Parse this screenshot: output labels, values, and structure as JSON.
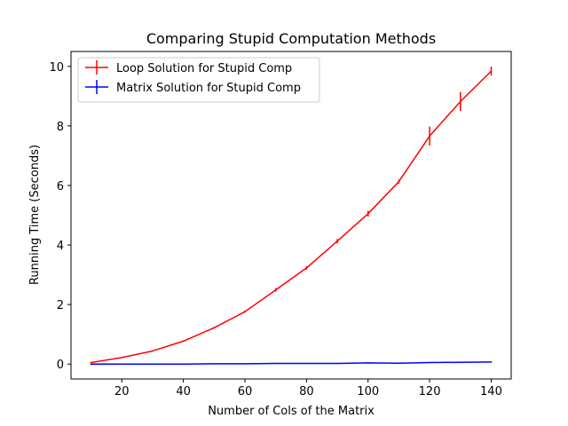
{
  "chart_data": {
    "type": "line",
    "title": "Comparing Stupid Computation Methods",
    "xlabel": "Number of Cols of the Matrix",
    "ylabel": "Running Time (Seconds)",
    "xlim": [
      3.5,
      146.5
    ],
    "ylim": [
      -0.5,
      10.5
    ],
    "xticks": [
      20,
      40,
      60,
      80,
      100,
      120,
      140
    ],
    "yticks": [
      0,
      2,
      4,
      6,
      8,
      10
    ],
    "grid": false,
    "legend_position": "upper-left",
    "x": [
      10,
      20,
      30,
      40,
      50,
      60,
      70,
      80,
      90,
      100,
      110,
      120,
      130,
      140
    ],
    "series": [
      {
        "name": "Loop Solution for Stupid Comp",
        "color": "#ff0000",
        "values": [
          0.05,
          0.22,
          0.44,
          0.77,
          1.22,
          1.76,
          2.49,
          3.23,
          4.13,
          5.05,
          6.13,
          7.66,
          8.82,
          9.84
        ],
        "errors": [
          0.01,
          0.01,
          0.02,
          0.02,
          0.03,
          0.03,
          0.06,
          0.06,
          0.07,
          0.1,
          0.07,
          0.32,
          0.32,
          0.15
        ]
      },
      {
        "name": "Matrix Solution for Stupid Comp",
        "color": "#0000ff",
        "values": [
          0.0,
          0.0,
          0.0,
          0.0,
          0.01,
          0.01,
          0.02,
          0.02,
          0.02,
          0.04,
          0.03,
          0.05,
          0.06,
          0.07
        ],
        "errors": [
          0.002,
          0.002,
          0.002,
          0.002,
          0.003,
          0.003,
          0.004,
          0.004,
          0.004,
          0.006,
          0.005,
          0.006,
          0.006,
          0.006
        ]
      }
    ]
  }
}
